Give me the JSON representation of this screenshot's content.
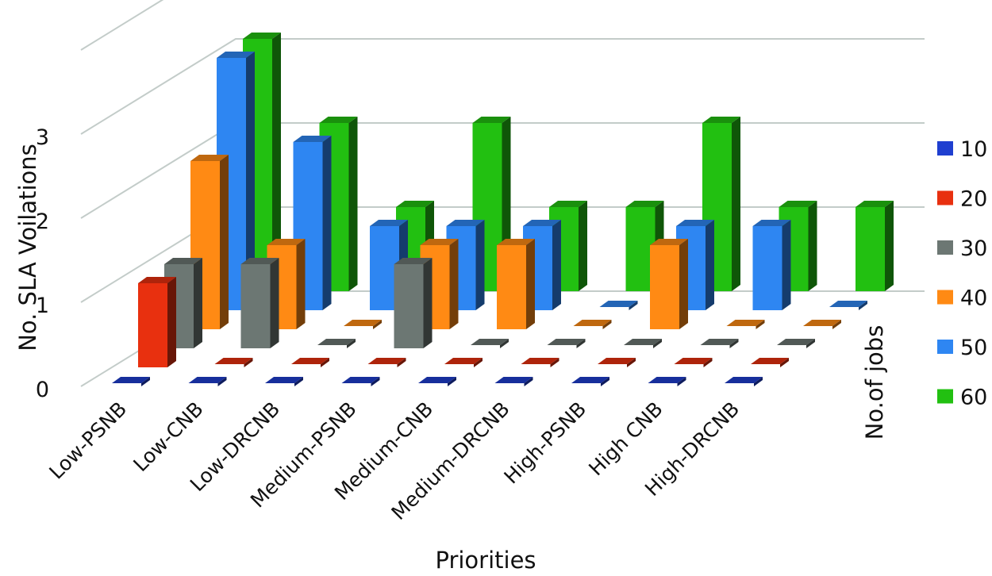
{
  "chart_data": {
    "type": "bar",
    "subtype": "3d-clustered-column",
    "title": "",
    "xlabel": "Priorities",
    "ylabel": "No. SLA Voilations",
    "depth_label": "No.of jobs",
    "ylim": [
      0,
      3
    ],
    "yticks": [
      "0",
      "1",
      "2",
      "3"
    ],
    "categories": [
      "Low-PSNB",
      "Low-CNB",
      "Low-DRCNB",
      "Medium-PSNB",
      "Medium-CNB",
      "Medium-DRCNB",
      "High-PSNB",
      "High CNB",
      "High-DRCNB"
    ],
    "legend_position": "right",
    "series": [
      {
        "name": "10",
        "color": "#1f3fd0",
        "values": [
          0,
          0,
          0,
          0,
          0,
          0,
          0,
          0,
          0
        ]
      },
      {
        "name": "20",
        "color": "#e8300f",
        "values": [
          1,
          0,
          0,
          0,
          0,
          0,
          0,
          0,
          0
        ]
      },
      {
        "name": "30",
        "color": "#6c7773",
        "values": [
          1,
          1,
          0,
          1,
          0,
          0,
          0,
          0,
          0
        ]
      },
      {
        "name": "40",
        "color": "#ff8a14",
        "values": [
          2,
          1,
          0,
          1,
          1,
          0,
          1,
          0,
          0
        ]
      },
      {
        "name": "50",
        "color": "#2e86f2",
        "values": [
          3,
          2,
          1,
          1,
          1,
          0,
          1,
          1,
          0
        ]
      },
      {
        "name": "60",
        "color": "#22c011",
        "values": [
          3,
          2,
          1,
          2,
          1,
          1,
          2,
          1,
          1
        ]
      }
    ]
  }
}
